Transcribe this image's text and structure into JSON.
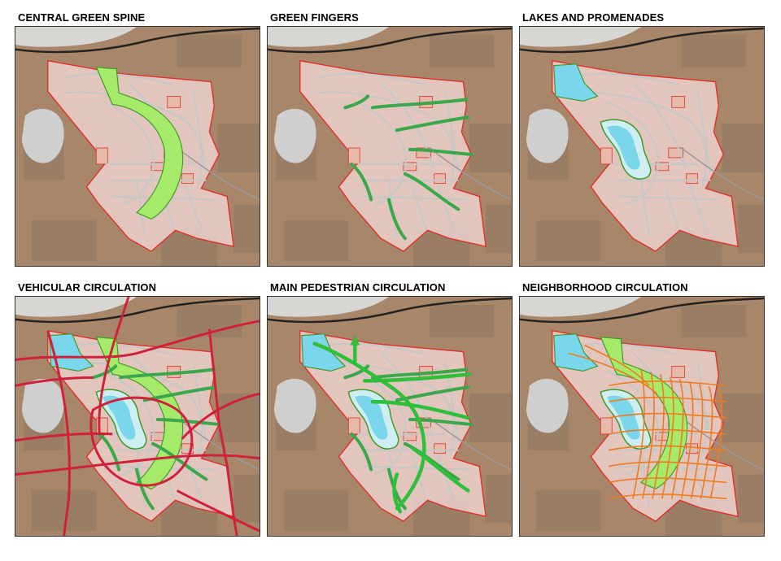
{
  "panels": [
    {
      "title": "CENTRAL GREEN SPINE",
      "layers": [
        "spine"
      ]
    },
    {
      "title": "GREEN FINGERS",
      "layers": [
        "fingers"
      ]
    },
    {
      "title": "LAKES AND PROMENADES",
      "layers": [
        "lakes"
      ]
    },
    {
      "title": "VEHICULAR CIRCULATION",
      "layers": [
        "spine",
        "fingers",
        "lakes",
        "vehicular"
      ]
    },
    {
      "title": "MAIN PEDESTRIAN CIRCULATION",
      "layers": [
        "fingers",
        "lakes",
        "pedestrian"
      ]
    },
    {
      "title": "NEIGHBORHOOD CIRCULATION",
      "layers": [
        "spine",
        "lakes",
        "neighborhood"
      ]
    }
  ],
  "colors": {
    "terrain": "#a8866a",
    "terrain_dark": "#8e7660",
    "site_fill": "#f2d9d6",
    "site_border": "#e0302a",
    "green_spine": "#a6ea6a",
    "green_edge": "#3f9a2a",
    "finger": "#3aa84a",
    "lake": "#7ad6ea",
    "lake_light": "#cfeef2",
    "vehicular": "#d0203a",
    "pedestrian": "#2fbf3a",
    "neighborhood": "#f07a20",
    "road_grey": "#c7c7c7",
    "rail": "#222222",
    "village": "#cfcfcf"
  }
}
